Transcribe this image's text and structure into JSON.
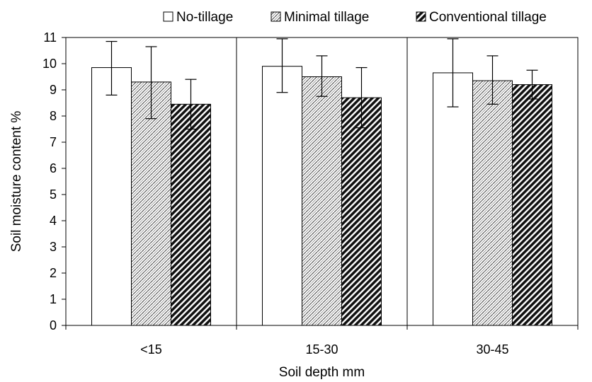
{
  "chart_data": {
    "type": "bar",
    "categories": [
      "<15",
      "15-30",
      "30-45"
    ],
    "series": [
      {
        "name": "No-tillage",
        "values": [
          9.85,
          9.9,
          9.65
        ],
        "err_low": [
          8.8,
          8.9,
          8.35
        ],
        "err_high": [
          10.85,
          10.95,
          10.95
        ],
        "pattern": "solid-white"
      },
      {
        "name": "Minimal tillage",
        "values": [
          9.3,
          9.5,
          9.35
        ],
        "err_low": [
          7.9,
          8.75,
          8.45
        ],
        "err_high": [
          10.65,
          10.3,
          10.3
        ],
        "pattern": "hatch-light"
      },
      {
        "name": "Conventional tillage",
        "values": [
          8.45,
          8.7,
          9.2
        ],
        "err_low": [
          7.5,
          7.55,
          8.65
        ],
        "err_high": [
          9.4,
          9.85,
          9.75
        ],
        "pattern": "hatch-dark"
      }
    ],
    "title": "",
    "xlabel": "Soil depth mm",
    "ylabel": "Soil moisture content %",
    "ylim": [
      0,
      11
    ],
    "yticks": [
      0,
      1,
      2,
      3,
      4,
      5,
      6,
      7,
      8,
      9,
      10,
      11
    ],
    "grid": "vertical separators between categories",
    "legend_position": "top-right"
  }
}
